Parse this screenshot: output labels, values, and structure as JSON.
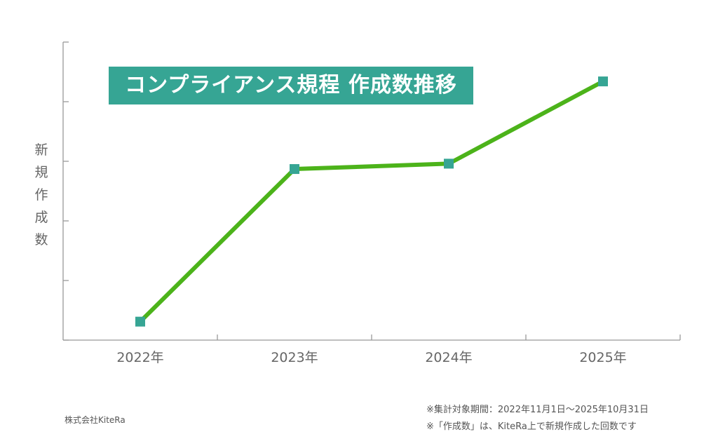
{
  "chart_data": {
    "type": "line",
    "title": "コンプライアンス規程 作成数推移",
    "ylabel": "新規作成数",
    "xlabel": "",
    "categories": [
      "2022年",
      "2023年",
      "2024年",
      "2025年"
    ],
    "series": [
      {
        "values": [
          0.31,
          2.87,
          2.96,
          4.34
        ]
      }
    ],
    "ylim": [
      0,
      5
    ],
    "y_tick_labels_shown": false,
    "grid": false,
    "colors": {
      "line": "#4cb31a",
      "marker": "#36a594",
      "axis": "#999999",
      "title_bg": "#36a594"
    }
  },
  "footer": {
    "company": "株式会社KiteRa",
    "notes": [
      "※集計対象期間：2022年11月1日〜2025年10月31日",
      "※「作成数」は、KiteRa上で新規作成した回数です"
    ]
  }
}
